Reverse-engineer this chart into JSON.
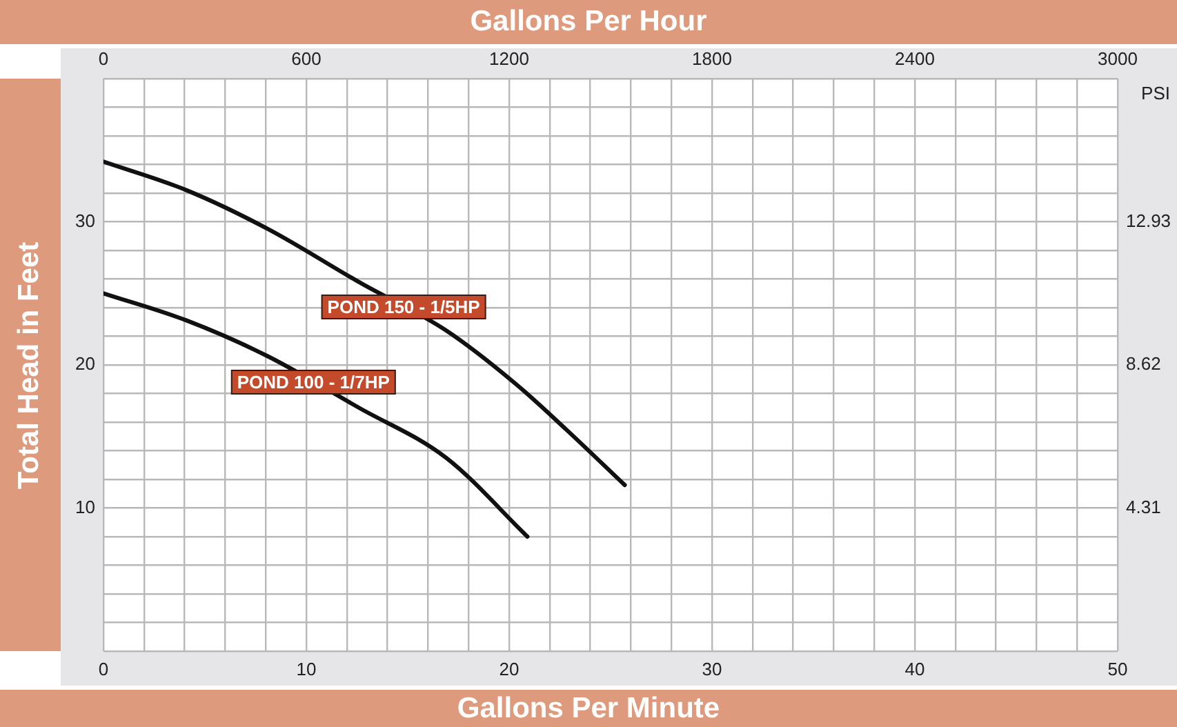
{
  "chart_data": {
    "type": "line",
    "xlabel": "Gallons Per Minute",
    "x2label": "Gallons Per Hour",
    "ylabel": "Total Head in Feet",
    "y2label": "PSI",
    "xlim": [
      0,
      50
    ],
    "xticks": [
      0,
      {
        "value": 2,
        "label": null
      },
      {
        "value": 4,
        "label": null
      },
      {
        "value": 6,
        "label": null
      },
      {
        "value": 8,
        "label": null
      },
      10,
      {
        "value": 12,
        "label": null
      },
      {
        "value": 14,
        "label": null
      },
      {
        "value": 16,
        "label": null
      },
      {
        "value": 18,
        "label": null
      },
      20,
      {
        "value": 22,
        "label": null
      },
      {
        "value": 24,
        "label": null
      },
      {
        "value": 26,
        "label": null
      },
      {
        "value": 28,
        "label": null
      },
      30,
      {
        "value": 32,
        "label": null
      },
      {
        "value": 34,
        "label": null
      },
      {
        "value": 36,
        "label": null
      },
      {
        "value": 38,
        "label": null
      },
      40,
      {
        "value": 42,
        "label": null
      },
      {
        "value": 44,
        "label": null
      },
      {
        "value": 46,
        "label": null
      },
      {
        "value": 48,
        "label": null
      },
      50
    ],
    "x2lim": [
      0,
      3000
    ],
    "x2ticks": [
      0,
      600,
      1200,
      1800,
      2400,
      3000
    ],
    "ylim": [
      0,
      40
    ],
    "yticks": [
      {
        "value": 0,
        "label": null
      },
      {
        "value": 2,
        "label": null
      },
      {
        "value": 4,
        "label": null
      },
      {
        "value": 6,
        "label": null
      },
      {
        "value": 8,
        "label": null
      },
      10,
      {
        "value": 12,
        "label": null
      },
      {
        "value": 14,
        "label": null
      },
      {
        "value": 16,
        "label": null
      },
      {
        "value": 18,
        "label": null
      },
      20,
      {
        "value": 22,
        "label": null
      },
      {
        "value": 24,
        "label": null
      },
      {
        "value": 26,
        "label": null
      },
      {
        "value": 28,
        "label": null
      },
      30,
      {
        "value": 32,
        "label": null
      },
      {
        "value": 34,
        "label": null
      },
      {
        "value": 36,
        "label": null
      },
      {
        "value": 38,
        "label": null
      },
      {
        "value": 40,
        "label": null
      }
    ],
    "y2lim": [
      0,
      17.24
    ],
    "y2ticks": [
      4.31,
      8.62,
      12.93
    ],
    "grid": true,
    "legend": false,
    "marker": "none",
    "line_style": "solid",
    "series": [
      {
        "name": "POND 150 - 1/5HP",
        "color": "#111111",
        "x": [
          0,
          4.1,
          8.1,
          12.7,
          16.9,
          20.3,
          22.8,
          25.7
        ],
        "values": [
          34.2,
          32.2,
          29.5,
          25.7,
          22.4,
          18.7,
          15.5,
          11.6
        ]
      },
      {
        "name": "POND 100 - 1/7HP",
        "color": "#111111",
        "x": [
          0,
          4.1,
          8.1,
          12.6,
          16.9,
          20.9
        ],
        "values": [
          25.0,
          23.1,
          20.6,
          17.0,
          13.5,
          8.0
        ]
      }
    ]
  }
}
